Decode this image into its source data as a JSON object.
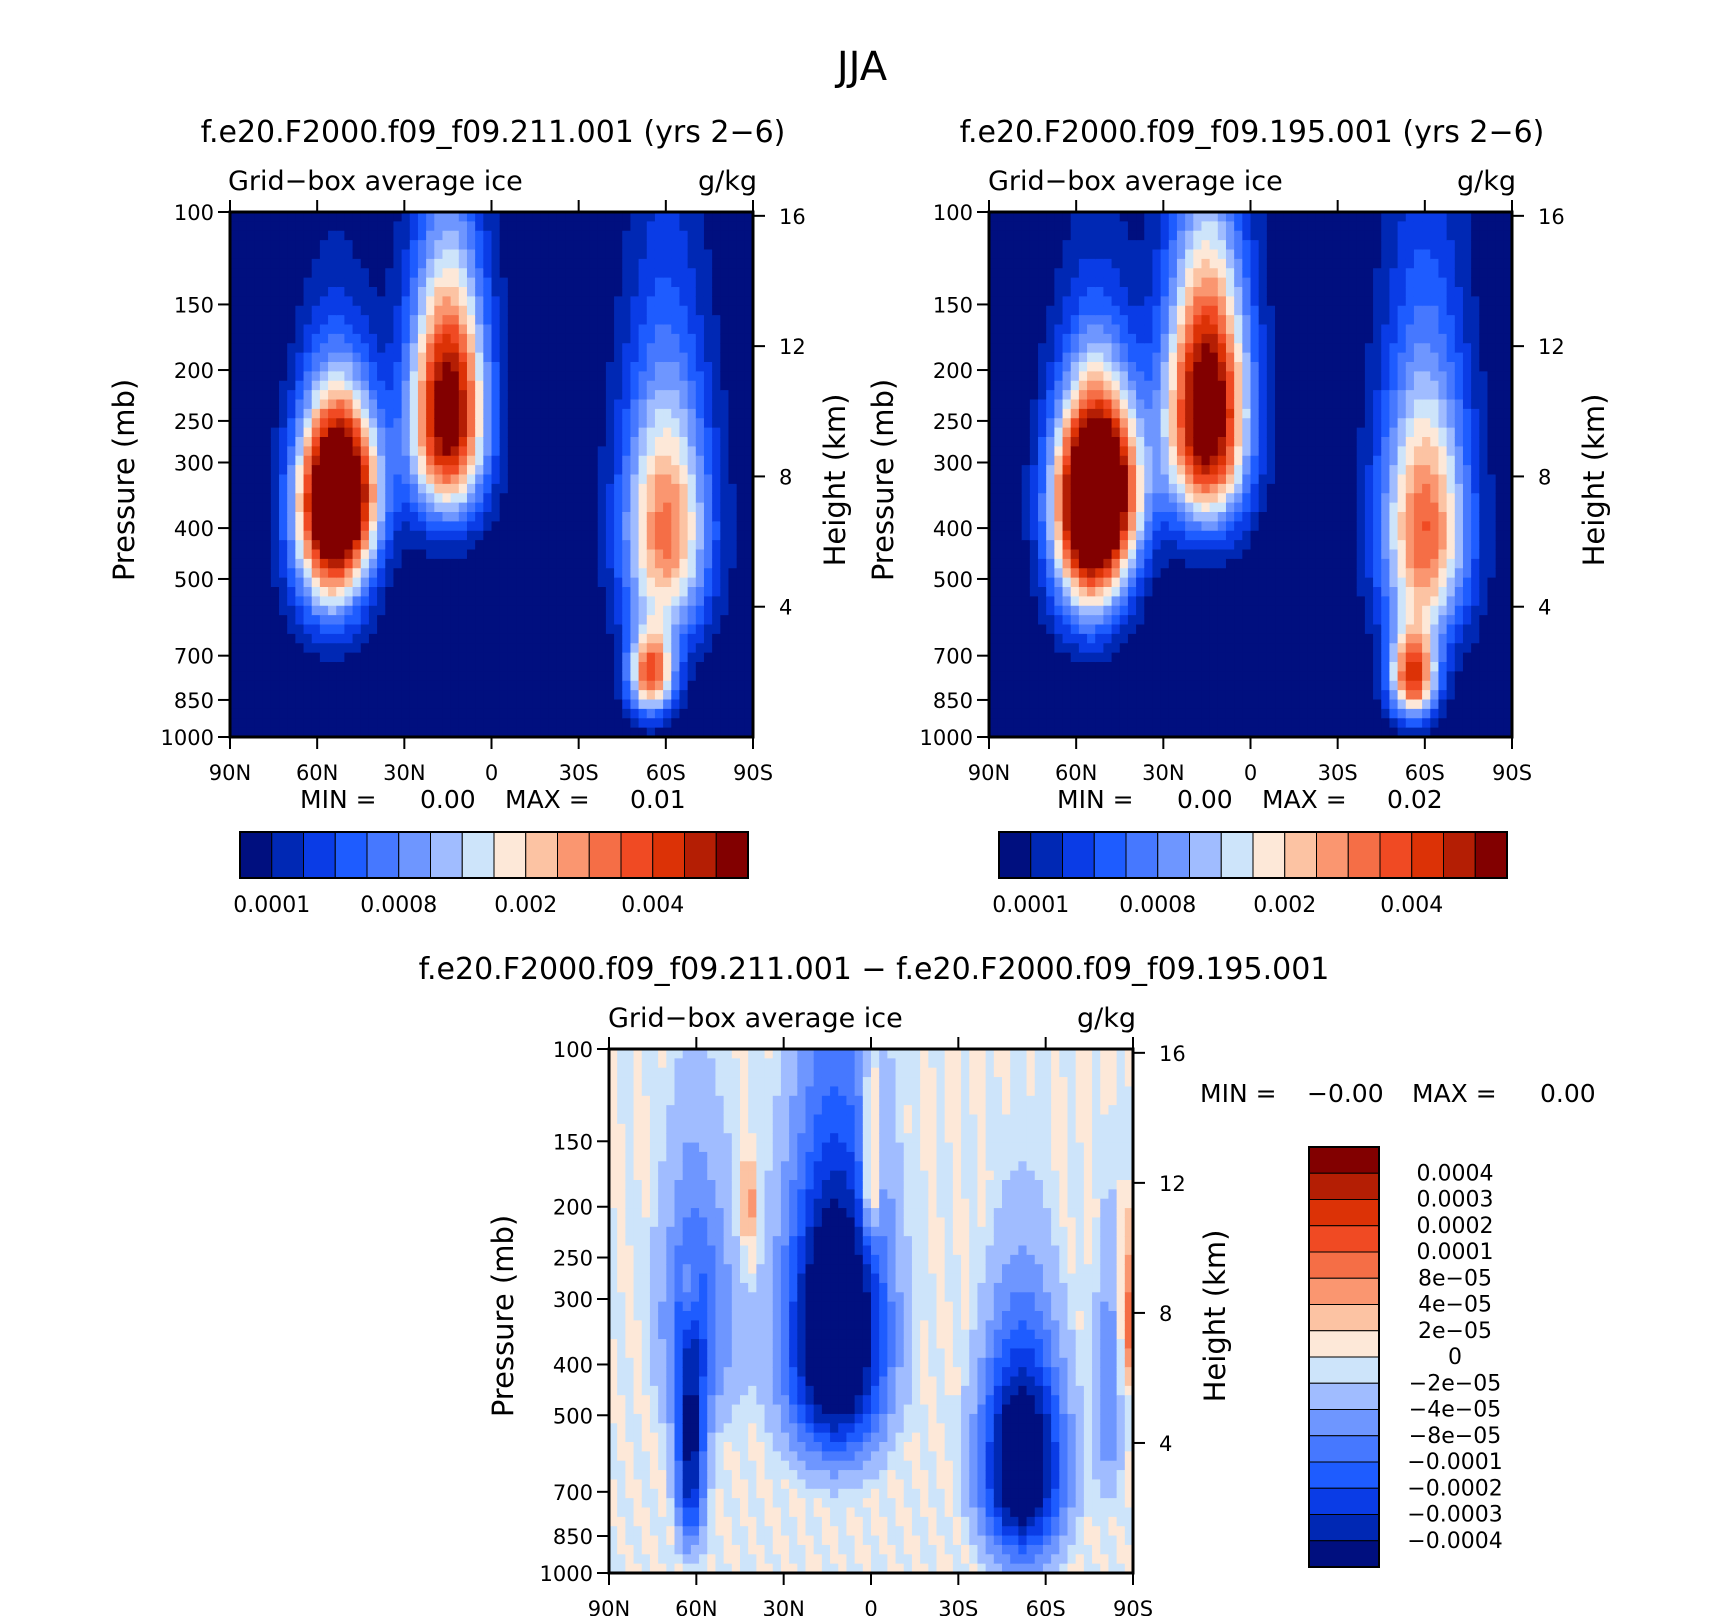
{
  "figure_title": "JJA",
  "colors": {
    "seq": [
      "#000f7f",
      "#0028b4",
      "#0a3ce6",
      "#1e5cff",
      "#4678ff",
      "#6e96ff",
      "#a0bcff",
      "#cde4fa",
      "#fde8d8",
      "#fcc3a3",
      "#fa9670",
      "#f56e46",
      "#f04a23",
      "#dc3206",
      "#b41e04",
      "#820000"
    ],
    "diff": [
      "#000f7f",
      "#0028b4",
      "#0a3ce6",
      "#1e5cff",
      "#4678ff",
      "#6e96ff",
      "#a0bcff",
      "#cde4fa",
      "#fde8d8",
      "#fcc3a3",
      "#fa9670",
      "#f56e46",
      "#f04a23",
      "#dc3206",
      "#b41e04",
      "#820000"
    ]
  },
  "chart_data": [
    {
      "id": "panel-left",
      "type": "heatmap",
      "title": "f.e20.F2000.f09_f09.211.001 (yrs 2−6)",
      "variable": "Grid−box average ice",
      "units": "g/kg",
      "ylabel": "Pressure (mb)",
      "ylabel_right": "Height (km)",
      "x_ticks": [
        "90N",
        "60N",
        "30N",
        "0",
        "30S",
        "60S",
        "90S"
      ],
      "x_range": [
        90,
        -90
      ],
      "y_ticks": [
        100,
        150,
        200,
        250,
        300,
        400,
        500,
        700,
        850,
        1000
      ],
      "y_range": [
        100,
        1000
      ],
      "height_ticks": [
        16,
        12,
        8,
        4
      ],
      "min_label": "MIN =",
      "min_value": "0.00",
      "max_label": "MAX =",
      "max_value": "0.01",
      "colorbar_labels": [
        "0.0001",
        "0.0008",
        "0.002",
        "0.004"
      ],
      "colorbar_label_positions": [
        0,
        4,
        8,
        12
      ],
      "blobs": [
        {
          "lat": 52,
          "p": 330,
          "amp": 15.5,
          "wlat": 13,
          "wp": 120
        },
        {
          "lat": 15,
          "p": 240,
          "amp": 17,
          "wlat": 13,
          "wp": 130
        },
        {
          "lat": 55,
          "p": 430,
          "amp": 11,
          "wlat": 13,
          "wp": 180
        },
        {
          "lat": -60,
          "p": 400,
          "amp": 11.5,
          "wlat": 15,
          "wp": 230
        },
        {
          "lat": -55,
          "p": 760,
          "amp": 12,
          "wlat": 8,
          "wp": 140
        }
      ]
    },
    {
      "id": "panel-right",
      "type": "heatmap",
      "title": "f.e20.F2000.f09_f09.195.001 (yrs 2−6)",
      "variable": "Grid−box average ice",
      "units": "g/kg",
      "ylabel": "Pressure (mb)",
      "ylabel_right": "Height (km)",
      "x_ticks": [
        "90N",
        "60N",
        "30N",
        "0",
        "30S",
        "60S",
        "90S"
      ],
      "x_range": [
        90,
        -90
      ],
      "y_ticks": [
        100,
        150,
        200,
        250,
        300,
        400,
        500,
        700,
        850,
        1000
      ],
      "y_range": [
        100,
        1000
      ],
      "height_ticks": [
        16,
        12,
        8,
        4
      ],
      "min_label": "MIN =",
      "min_value": "0.00",
      "max_label": "MAX =",
      "max_value": "0.02",
      "colorbar_labels": [
        "0.0001",
        "0.0008",
        "0.002",
        "0.004"
      ],
      "colorbar_label_positions": [
        0,
        4,
        8,
        12
      ],
      "blobs": [
        {
          "lat": 52,
          "p": 330,
          "amp": 16.5,
          "wlat": 14,
          "wp": 130
        },
        {
          "lat": 15,
          "p": 240,
          "amp": 18,
          "wlat": 14,
          "wp": 140
        },
        {
          "lat": 55,
          "p": 430,
          "amp": 11.5,
          "wlat": 13,
          "wp": 190
        },
        {
          "lat": -60,
          "p": 400,
          "amp": 12,
          "wlat": 15,
          "wp": 240
        },
        {
          "lat": -56,
          "p": 770,
          "amp": 13,
          "wlat": 8,
          "wp": 150
        }
      ]
    },
    {
      "id": "panel-diff",
      "type": "heatmap",
      "title": "f.e20.F2000.f09_f09.211.001 − f.e20.F2000.f09_f09.195.001",
      "variable": "Grid−box average ice",
      "units": "g/kg",
      "ylabel": "Pressure (mb)",
      "ylabel_right": "Height (km)",
      "x_ticks": [
        "90N",
        "60N",
        "30N",
        "0",
        "30S",
        "60S",
        "90S"
      ],
      "x_range": [
        90,
        -90
      ],
      "y_ticks": [
        100,
        150,
        200,
        250,
        300,
        400,
        500,
        700,
        850,
        1000
      ],
      "y_range": [
        100,
        1000
      ],
      "height_ticks": [
        16,
        12,
        8,
        4
      ],
      "min_label": "MIN =",
      "min_value": "−0.00",
      "max_label": "MAX =",
      "max_value": "0.00",
      "colorbar_labels": [
        "0.0004",
        "0.0003",
        "0.0002",
        "0.0001",
        "8e−05",
        "4e−05",
        "2e−05",
        "0",
        "−2e−05",
        "−4e−05",
        "−8e−05",
        "−0.0001",
        "−0.0002",
        "−0.0003",
        "−0.0004"
      ],
      "blobs": [
        {
          "lat": 12,
          "p": 350,
          "amp": -11,
          "wlat": 17,
          "wp": 230
        },
        {
          "lat": 62,
          "p": 620,
          "amp": -7,
          "wlat": 5,
          "wp": 260
        },
        {
          "lat": -52,
          "p": 620,
          "amp": -10,
          "wlat": 14,
          "wp": 300
        },
        {
          "lat": 60,
          "p": 330,
          "amp": -4,
          "wlat": 14,
          "wp": 200
        },
        {
          "lat": -82,
          "p": 450,
          "amp": -3,
          "wlat": 5,
          "wp": 260
        },
        {
          "lat": 0,
          "p": 170,
          "amp": 5,
          "wlat": 3,
          "wp": 60
        },
        {
          "lat": 42,
          "p": 200,
          "amp": 3.5,
          "wlat": 3,
          "wp": 50
        },
        {
          "lat": 62,
          "p": 290,
          "amp": 3,
          "wlat": 2,
          "wp": 50
        },
        {
          "lat": -88,
          "p": 330,
          "amp": 4,
          "wlat": 3,
          "wp": 120
        }
      ]
    }
  ]
}
